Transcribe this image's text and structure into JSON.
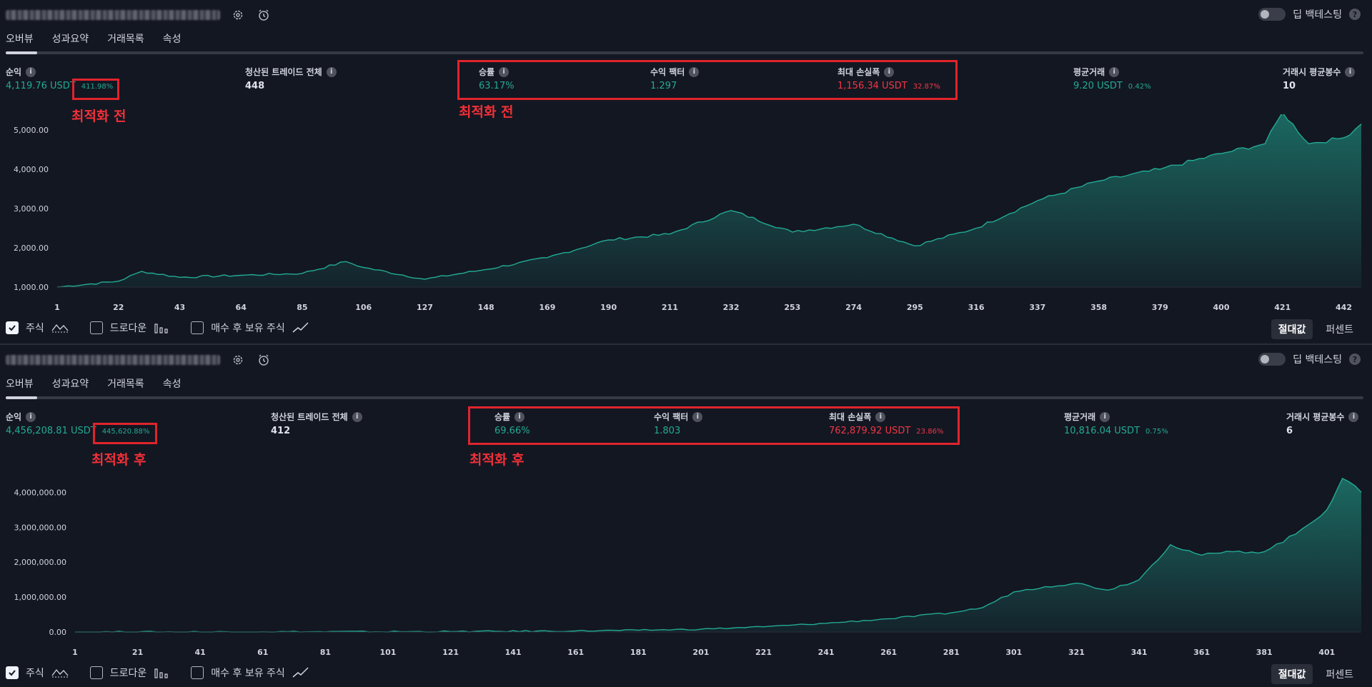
{
  "panels": [
    {
      "toggle_label": "딥 백테스팅",
      "tabs": [
        "오버뷰",
        "성과요약",
        "거래목록",
        "속성"
      ],
      "metrics": {
        "net_profit": {
          "label": "순익",
          "value": "4,119.76 USDT",
          "pct": "411.98%"
        },
        "closed_trades": {
          "label": "청산된 트레이드 전체",
          "value": "448"
        },
        "win_rate": {
          "label": "승률",
          "value": "63.17%"
        },
        "profit_factor": {
          "label": "수익 팩터",
          "value": "1.297"
        },
        "max_drawdown": {
          "label": "최대 손실폭",
          "value": "1,156.34 USDT",
          "pct": "32.87%"
        },
        "avg_trade": {
          "label": "평균거래",
          "value": "9.20 USDT",
          "pct": "0.42%"
        },
        "avg_bars": {
          "label": "거래시 평균봉수",
          "value": "10"
        }
      },
      "annotation_left": "최적화 전",
      "annotation_mid": "최적화 전",
      "options": {
        "equity": "주식",
        "drawdown": "드로다운",
        "buy_hold": "매수 후 보유 주식"
      },
      "mode": {
        "absolute": "절대값",
        "percent": "퍼센트"
      },
      "chart_data": {
        "type": "area",
        "yticks": [
          "5,000.00",
          "4,000.00",
          "3,000.00",
          "2,000.00",
          "1,000.00"
        ],
        "ylim": [
          1000,
          5000
        ],
        "xticks": [
          "1",
          "22",
          "43",
          "64",
          "85",
          "106",
          "127",
          "148",
          "169",
          "190",
          "211",
          "232",
          "253",
          "274",
          "295",
          "316",
          "337",
          "358",
          "379",
          "400",
          "421",
          "442"
        ],
        "xlim": [
          1,
          448
        ],
        "x": [
          1,
          22,
          30,
          43,
          64,
          85,
          100,
          106,
          127,
          148,
          169,
          190,
          211,
          232,
          253,
          274,
          295,
          316,
          337,
          358,
          379,
          400,
          415,
          421,
          430,
          442,
          448
        ],
        "y": [
          1000,
          1150,
          1400,
          1250,
          1300,
          1350,
          1650,
          1500,
          1200,
          1450,
          1750,
          2200,
          2350,
          2950,
          2400,
          2600,
          2050,
          2500,
          3200,
          3700,
          4000,
          4400,
          4650,
          5450,
          4650,
          4800,
          5150
        ]
      }
    },
    {
      "toggle_label": "딥 백테스팅",
      "tabs": [
        "오버뷰",
        "성과요약",
        "거래목록",
        "속성"
      ],
      "metrics": {
        "net_profit": {
          "label": "순익",
          "value": "4,456,208.81 USDT",
          "pct": "445,620.88%"
        },
        "closed_trades": {
          "label": "청산된 트레이드 전체",
          "value": "412"
        },
        "win_rate": {
          "label": "승률",
          "value": "69.66%"
        },
        "profit_factor": {
          "label": "수익 팩터",
          "value": "1.803"
        },
        "max_drawdown": {
          "label": "최대 손실폭",
          "value": "762,879.92 USDT",
          "pct": "23.86%"
        },
        "avg_trade": {
          "label": "평균거래",
          "value": "10,816.04 USDT",
          "pct": "0.75%"
        },
        "avg_bars": {
          "label": "거래시 평균봉수",
          "value": "6"
        }
      },
      "annotation_left": "최적화 후",
      "annotation_mid": "최적화 후",
      "options": {
        "equity": "주식",
        "drawdown": "드로다운",
        "buy_hold": "매수 후 보유 주식"
      },
      "mode": {
        "absolute": "절대값",
        "percent": "퍼센트"
      },
      "chart_data": {
        "type": "area",
        "yticks": [
          "4,000,000.00",
          "3,000,000.00",
          "2,000,000.00",
          "1,000,000.00",
          "0.00"
        ],
        "ylim": [
          0,
          4500000
        ],
        "xticks": [
          "1",
          "21",
          "41",
          "61",
          "81",
          "101",
          "121",
          "141",
          "161",
          "181",
          "201",
          "221",
          "241",
          "261",
          "281",
          "301",
          "321",
          "341",
          "361",
          "381",
          "401"
        ],
        "xlim": [
          1,
          412
        ],
        "x": [
          1,
          61,
          121,
          161,
          181,
          201,
          221,
          241,
          261,
          281,
          291,
          301,
          311,
          321,
          331,
          341,
          351,
          361,
          371,
          381,
          391,
          401,
          406,
          412
        ],
        "y": [
          0,
          5000,
          12000,
          30000,
          50000,
          80000,
          150000,
          250000,
          380000,
          550000,
          700000,
          1150000,
          1300000,
          1400000,
          1200000,
          1500000,
          2500000,
          2200000,
          2300000,
          2300000,
          2800000,
          3500000,
          4400000,
          4000000
        ]
      }
    }
  ]
}
